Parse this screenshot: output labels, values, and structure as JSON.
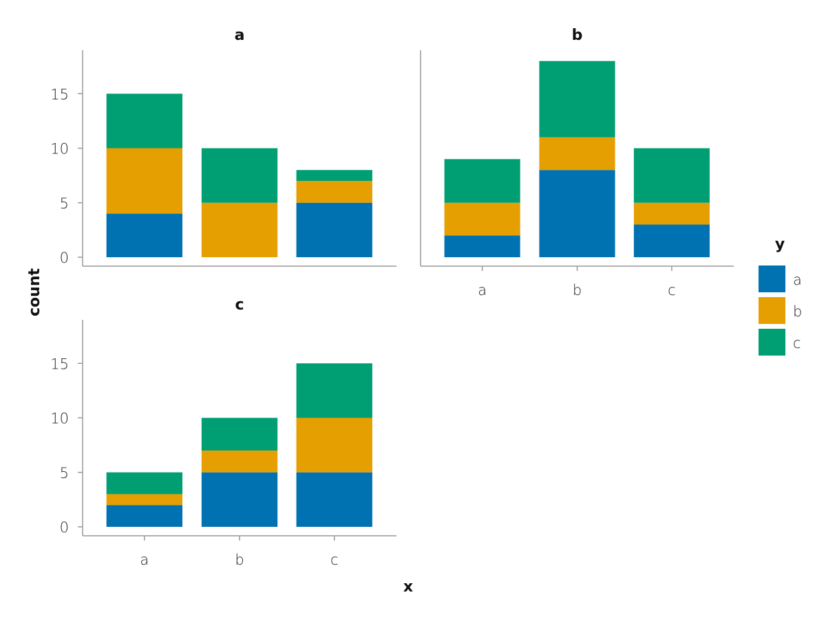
{
  "chart_data": {
    "type": "bar",
    "stacked": true,
    "xlabel": "x",
    "ylabel": "count",
    "ylim": [
      0,
      18.8
    ],
    "yticks": [
      "0",
      "5",
      "10",
      "15"
    ],
    "categories": [
      "a",
      "b",
      "c"
    ],
    "legend": {
      "title": "y",
      "placement": "right",
      "entries": [
        "a",
        "b",
        "c"
      ]
    },
    "colors": {
      "a": "#0072B2",
      "b": "#E69F00",
      "c": "#009E73"
    },
    "panels": [
      {
        "title": "a",
        "series": [
          {
            "name": "a",
            "values": [
              4,
              0,
              5
            ]
          },
          {
            "name": "b",
            "values": [
              6,
              5,
              2
            ]
          },
          {
            "name": "c",
            "values": [
              5,
              5,
              1
            ]
          }
        ]
      },
      {
        "title": "b",
        "series": [
          {
            "name": "a",
            "values": [
              2,
              8,
              3
            ]
          },
          {
            "name": "b",
            "values": [
              3,
              3,
              2
            ]
          },
          {
            "name": "c",
            "values": [
              4,
              7,
              5
            ]
          }
        ]
      },
      {
        "title": "c",
        "series": [
          {
            "name": "a",
            "values": [
              2,
              5,
              5
            ]
          },
          {
            "name": "b",
            "values": [
              1,
              2,
              5
            ]
          },
          {
            "name": "c",
            "values": [
              2,
              3,
              5
            ]
          }
        ]
      }
    ]
  }
}
